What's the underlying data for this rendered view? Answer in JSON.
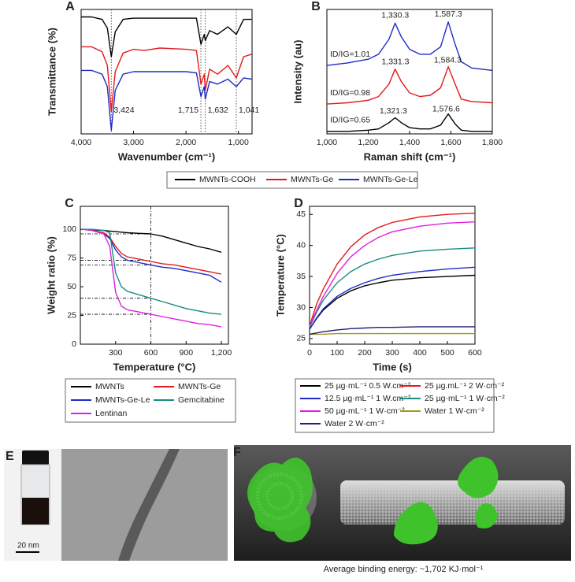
{
  "chart_data": [
    {
      "type": "line",
      "label": "A",
      "x_label": "Wavenumber (cm⁻¹)",
      "y_label": "Transmittance (%)",
      "xlim": [
        4000,
        740
      ],
      "ylim": [
        0,
        100
      ],
      "xticks": [
        {
          "value": 4000,
          "label": "4,000"
        },
        {
          "value": 3000,
          "label": "3,000"
        },
        {
          "value": 2000,
          "label": "2,000"
        },
        {
          "value": 1000,
          "label": "1,000"
        }
      ],
      "x": [
        4000,
        3800,
        3600,
        3500,
        3424,
        3350,
        3200,
        3000,
        2800,
        2500,
        2000,
        1800,
        1715,
        1650,
        1632,
        1550,
        1400,
        1200,
        1041,
        900,
        750
      ],
      "series": [
        {
          "name": "MWNTs-COOH",
          "color": "#000000",
          "values": [
            94,
            94,
            92,
            85,
            62,
            82,
            92,
            93,
            93,
            93,
            93,
            93,
            72,
            80,
            75,
            83,
            80,
            86,
            80,
            92,
            92
          ]
        },
        {
          "name": "MWNTs-Ge",
          "color": "#e31a1c",
          "values": [
            70,
            70,
            66,
            55,
            18,
            50,
            65,
            68,
            67,
            69,
            68,
            67,
            40,
            48,
            35,
            52,
            48,
            55,
            45,
            62,
            64
          ]
        },
        {
          "name": "MWNTs-Ge-Le",
          "color": "#1f2bc4",
          "values": [
            51,
            51,
            48,
            38,
            3,
            35,
            48,
            50,
            50,
            50,
            50,
            49,
            30,
            38,
            28,
            42,
            40,
            44,
            38,
            45,
            44
          ]
        }
      ],
      "annotations": [
        {
          "text": "3,424",
          "x": 3424
        },
        {
          "text": "1,715",
          "x": 1715
        },
        {
          "text": "1,632",
          "x": 1632
        },
        {
          "text": "1,041",
          "x": 1041
        }
      ]
    },
    {
      "type": "line",
      "label": "B",
      "x_label": "Raman shift (cm⁻¹)",
      "y_label": "Intensity (au)",
      "xlim": [
        1000,
        1800
      ],
      "ylim": [
        0,
        100
      ],
      "xticks": [
        {
          "value": 1000,
          "label": "1,000"
        },
        {
          "value": 1200,
          "label": "1,200"
        },
        {
          "value": 1400,
          "label": "1,400"
        },
        {
          "value": 1600,
          "label": "1,600"
        },
        {
          "value": 1800,
          "label": "1,800"
        }
      ],
      "x": [
        1000,
        1100,
        1200,
        1250,
        1300,
        1330,
        1360,
        1400,
        1450,
        1500,
        1550,
        1587,
        1620,
        1650,
        1700,
        1800
      ],
      "series": [
        {
          "color": "#1f2bc4",
          "values": [
            55,
            57,
            60,
            64,
            76,
            89,
            78,
            68,
            64,
            64,
            70,
            90,
            72,
            58,
            53,
            51
          ],
          "peaks": [
            1330.3,
            1587.3
          ],
          "peak_labels": [
            "1,330.3",
            "1,587.3"
          ],
          "ratio_label": "ID/IG=1.01"
        },
        {
          "color": "#e31a1c",
          "values": [
            24,
            25,
            27,
            30,
            40,
            52,
            42,
            33,
            30,
            31,
            37,
            54,
            40,
            28,
            26,
            25
          ],
          "peaks": [
            1331.3,
            1584.3
          ],
          "peak_labels": [
            "1,331.3",
            "1,584.3"
          ],
          "ratio_label": "ID/IG=0.98"
        },
        {
          "color": "#000000",
          "values": [
            2,
            2,
            3,
            4,
            9,
            13,
            9,
            5,
            4,
            4,
            7,
            16,
            8,
            3,
            2,
            2
          ],
          "peaks": [
            1321.3,
            1576.6
          ],
          "peak_labels": [
            "1,321.3",
            "1,576.6"
          ],
          "ratio_label": "ID/IG=0.65"
        }
      ]
    },
    {
      "type": "line",
      "label": "C",
      "x_label": "Temperature (°C)",
      "y_label": "Weight ratio (%)",
      "xlim": [
        0,
        1260
      ],
      "ylim": [
        0,
        120
      ],
      "xticks": [
        300,
        600,
        900,
        {
          "value": 1200,
          "label": "1,200"
        }
      ],
      "yticks": [
        0,
        25,
        50,
        75,
        100
      ],
      "vline": 600,
      "hlines": [
        96,
        73,
        69,
        40,
        26
      ],
      "x": [
        25,
        100,
        200,
        250,
        300,
        350,
        400,
        500,
        600,
        700,
        800,
        900,
        1000,
        1100,
        1200
      ],
      "series": [
        {
          "name": "MWNTs",
          "color": "#000000",
          "values": [
            100,
            99.5,
            99,
            98.5,
            98,
            97.5,
            97,
            96.5,
            96,
            94,
            91,
            88,
            85,
            83,
            80
          ]
        },
        {
          "name": "MWNTs-Ge",
          "color": "#e31a1c",
          "values": [
            100,
            99,
            97,
            93,
            85,
            79,
            76,
            74,
            72,
            70,
            69,
            67,
            65,
            63,
            61
          ]
        },
        {
          "name": "MWNTs-Ge-Le",
          "color": "#1f2bc4",
          "values": [
            100,
            99,
            96,
            92,
            82,
            76,
            73,
            71,
            69,
            67,
            66,
            64,
            62,
            60,
            54
          ]
        },
        {
          "name": "Gemcitabine",
          "color": "#1b8a80",
          "values": [
            100,
            100,
            99,
            97,
            62,
            50,
            46,
            43,
            40,
            37,
            34,
            31,
            29,
            27,
            26
          ]
        },
        {
          "name": "Lentinan",
          "color": "#e020e0",
          "values": [
            100,
            99,
            96,
            85,
            45,
            33,
            30,
            28,
            26,
            24,
            22,
            20,
            18,
            17,
            15
          ]
        }
      ]
    },
    {
      "type": "line",
      "label": "D",
      "x_label": "Time (s)",
      "y_label": "Temperature (°C)",
      "xlim": [
        0,
        600
      ],
      "ylim": [
        24.1,
        46.3
      ],
      "xticks": [
        0,
        100,
        200,
        300,
        400,
        500,
        600
      ],
      "yticks": [
        25,
        30,
        35,
        40,
        45
      ],
      "x": [
        0,
        25,
        50,
        100,
        150,
        200,
        250,
        300,
        400,
        500,
        600
      ],
      "series": [
        {
          "name": "25 µg·mL⁻¹ 0.5 W.cm⁻²",
          "color": "#000000",
          "values": [
            26.5,
            28.2,
            29.6,
            31.5,
            32.7,
            33.5,
            34.0,
            34.4,
            34.8,
            35.0,
            35.2
          ]
        },
        {
          "name": "25 µg.mL⁻¹ 2 W·cm⁻²",
          "color": "#e31a1c",
          "values": [
            27,
            30.5,
            33,
            37,
            39.8,
            41.7,
            42.9,
            43.7,
            44.6,
            45.0,
            45.2
          ]
        },
        {
          "name": "12.5 µg·mL⁻¹ 1 W.cm⁻²",
          "color": "#1f2bc4",
          "values": [
            26.5,
            28.3,
            29.8,
            31.8,
            33.1,
            34,
            34.7,
            35.2,
            35.8,
            36.2,
            36.5
          ]
        },
        {
          "name": "25 µg·mL⁻¹ 1 W·cm⁻²",
          "color": "#1b8a80",
          "values": [
            26.8,
            29.2,
            31.2,
            34,
            35.8,
            37,
            37.8,
            38.4,
            39.1,
            39.4,
            39.6
          ]
        },
        {
          "name": "50 µg·mL⁻¹ 1 W·cm⁻²",
          "color": "#e020e0",
          "values": [
            27,
            29.5,
            31.8,
            35.5,
            38.2,
            40,
            41.3,
            42.2,
            43.1,
            43.6,
            43.8
          ]
        },
        {
          "name": "Water 1 W·cm⁻²",
          "color": "#a09a20",
          "values": [
            25.7,
            25.7,
            25.7,
            25.8,
            25.8,
            25.8,
            25.8,
            25.8,
            25.8,
            25.8,
            25.8
          ]
        },
        {
          "name": "Water 2 W·cm⁻²",
          "color": "#20207a",
          "values": [
            25.7,
            25.9,
            26.1,
            26.4,
            26.6,
            26.7,
            26.8,
            26.8,
            26.9,
            26.9,
            26.9
          ]
        }
      ]
    }
  ],
  "images": {
    "e_label": "E",
    "e_scale": "20 nm",
    "f_label": "F",
    "f_caption": "Average binding energy: ~1,702 KJ·mol⁻¹"
  }
}
